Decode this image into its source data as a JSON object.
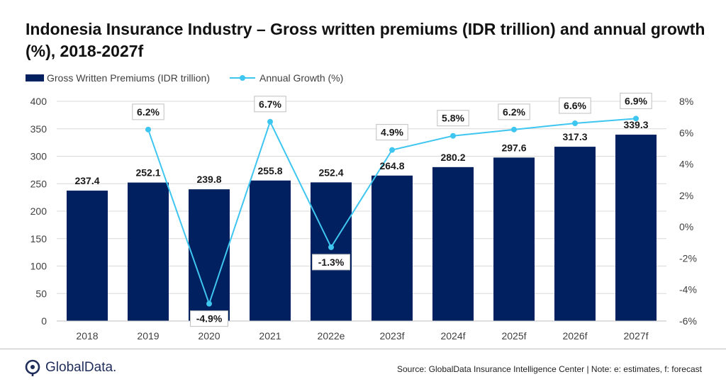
{
  "title": "Indonesia Insurance Industry – Gross written premiums (IDR trillion) and annual growth (%), 2018-2027f",
  "legend": {
    "bars": "Gross Written Premiums (IDR trillion)",
    "line": "Annual Growth (%)"
  },
  "colors": {
    "bar": "#002060",
    "line": "#3ec6f0",
    "grid": "#d9d9d9"
  },
  "footer": {
    "logo_text": "GlobalData.",
    "source": "Source: GlobalData Insurance Intelligence Center | Note: e: estimates, f: forecast"
  },
  "chart_data": {
    "type": "bar",
    "categories": [
      "2018",
      "2019",
      "2020",
      "2021",
      "2022e",
      "2023f",
      "2024f",
      "2025f",
      "2026f",
      "2027f"
    ],
    "series": [
      {
        "name": "Gross Written Premiums (IDR trillion)",
        "type": "bar",
        "axis": "left",
        "values": [
          237.4,
          252.1,
          239.8,
          255.8,
          252.4,
          264.8,
          280.2,
          297.6,
          317.3,
          339.3
        ],
        "labels": [
          "237.4",
          "252.1",
          "239.8",
          "255.8",
          "252.4",
          "264.8",
          "280.2",
          "297.6",
          "317.3",
          "339.3"
        ]
      },
      {
        "name": "Annual Growth (%)",
        "type": "line",
        "axis": "right",
        "values": [
          null,
          6.2,
          -4.9,
          6.7,
          -1.3,
          4.9,
          5.8,
          6.2,
          6.6,
          6.9
        ],
        "labels": [
          "",
          "6.2%",
          "-4.9%",
          "6.7%",
          "-1.3%",
          "4.9%",
          "5.8%",
          "6.2%",
          "6.6%",
          "6.9%"
        ]
      }
    ],
    "ylim_left": [
      0,
      400
    ],
    "yticks_left": [
      "0",
      "50",
      "100",
      "150",
      "200",
      "250",
      "300",
      "350",
      "400"
    ],
    "ylim_right": [
      -6,
      8
    ],
    "yticks_right": [
      "-6%",
      "-4%",
      "-2%",
      "0%",
      "2%",
      "4%",
      "6%",
      "8%"
    ],
    "grid": true,
    "legend_position": "top-left"
  }
}
